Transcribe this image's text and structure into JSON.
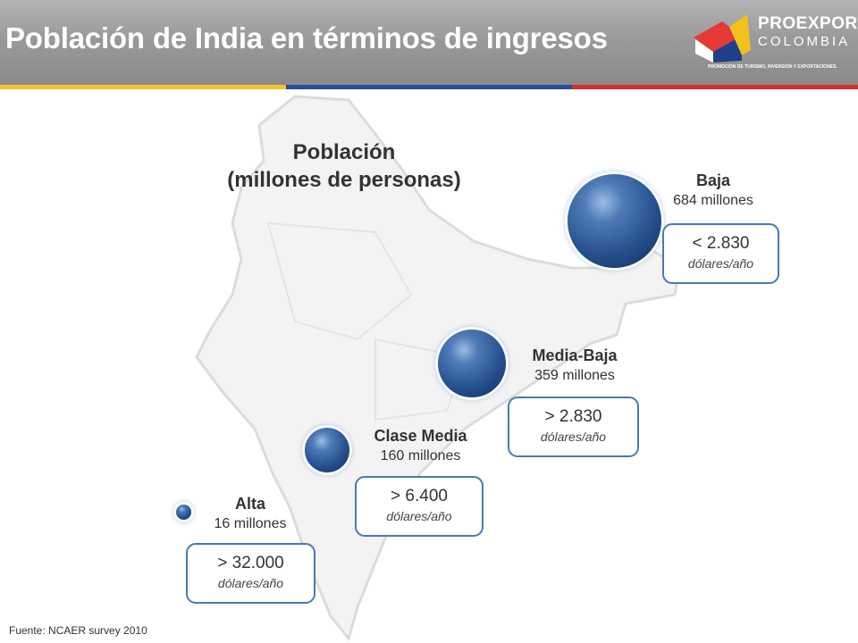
{
  "title": "Población de India en términos de ingresos",
  "logo": {
    "line1": "PROEXPORT",
    "line2": "COLOMBIA",
    "tagline": "PROMOCIÓN DE TURISMO, INVERSIÓN Y EXPORTACIONES."
  },
  "colors": {
    "stripe": [
      "#f3c32f",
      "#274f9a",
      "#d0312d"
    ],
    "bubble": "#2b5591",
    "box_border": "#4a78b6"
  },
  "chart": {
    "title_line1": "Población",
    "title_line2": "(millones de personas)"
  },
  "chart_data": {
    "type": "bubble",
    "title": "Población (millones de personas)",
    "series": [
      {
        "class": "Alta",
        "population_label": "16 millones",
        "value": 16,
        "threshold": "> 32.000",
        "unit": "dólares/año"
      },
      {
        "class": "Clase Media",
        "population_label": "160 millones",
        "value": 160,
        "threshold": "> 6.400",
        "unit": "dólares/año"
      },
      {
        "class": "Media-Baja",
        "population_label": "359 millones",
        "value": 359,
        "threshold": "> 2.830",
        "unit": "dólares/año"
      },
      {
        "class": "Baja",
        "population_label": "684 millones",
        "value": 684,
        "threshold": "< 2.830",
        "unit": "dólares/año"
      }
    ]
  },
  "source": "Fuente: NCAER survey 2010"
}
